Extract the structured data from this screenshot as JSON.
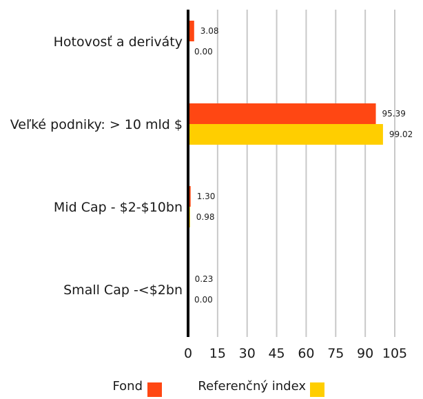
{
  "chart_data": {
    "type": "bar",
    "orientation": "horizontal",
    "categories": [
      "Hotovosť a deriváty",
      "Veľké podniky: > 10 mld $",
      "Mid Cap - $2-$10bn",
      "Small Cap -<$2bn"
    ],
    "series": [
      {
        "name": "Fond",
        "color": "#ff4713",
        "values": [
          3.08,
          95.39,
          1.3,
          0.23
        ],
        "labels": [
          "3.08",
          "95.39",
          "1.30",
          "0.23"
        ]
      },
      {
        "name": "Referenčný index",
        "color": "#ffce00",
        "values": [
          0.0,
          99.02,
          0.98,
          0.0
        ],
        "labels": [
          "0.00",
          "99.02",
          "0.98",
          "0.00"
        ]
      }
    ],
    "xlim": [
      0,
      105
    ],
    "xticks": [
      "0",
      "15",
      "30",
      "45",
      "60",
      "75",
      "90",
      "105"
    ],
    "xtick_values": [
      0,
      15,
      30,
      45,
      60,
      75,
      90,
      105
    ],
    "grid": true,
    "grid_color": "#c8c8c8",
    "axis_color": "#000000",
    "legend_position": "bottom"
  }
}
